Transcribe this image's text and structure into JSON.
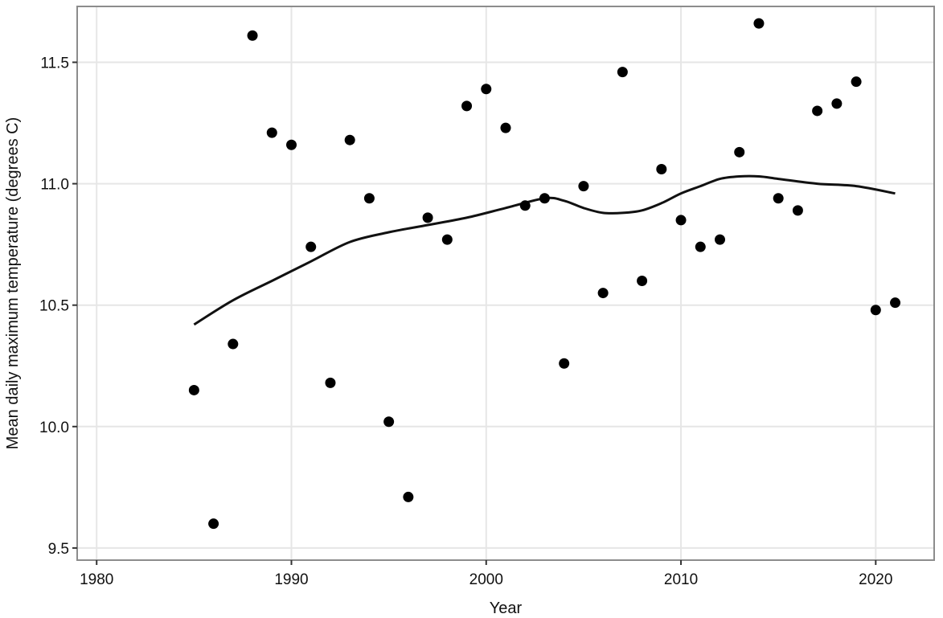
{
  "chart_data": {
    "type": "scatter",
    "title": "",
    "xlabel": "Year",
    "ylabel": "Mean daily maximum temperature (degrees C)",
    "xlim": [
      1979,
      2023
    ],
    "ylim": [
      9.45,
      11.73
    ],
    "xticks": [
      1980,
      1990,
      2000,
      2010,
      2020
    ],
    "yticks": [
      9.5,
      10.0,
      10.5,
      11.0,
      11.5
    ],
    "ytick_labels": [
      "9.5",
      "10.0",
      "10.5",
      "11.0",
      "11.5"
    ],
    "grid": true,
    "colors": {
      "points": "#000000",
      "trend": "#111111",
      "grid": "#e6e6e6",
      "frame": "#8c8c8c"
    },
    "series": [
      {
        "kind": "points",
        "x": [
          1985,
          1986,
          1987,
          1988,
          1989,
          1990,
          1991,
          1992,
          1993,
          1994,
          1995,
          1996,
          1997,
          1998,
          1999,
          2000,
          2001,
          2002,
          2003,
          2004,
          2005,
          2006,
          2007,
          2008,
          2009,
          2010,
          2011,
          2012,
          2013,
          2014,
          2015,
          2016,
          2017,
          2018,
          2019,
          2020,
          2021
        ],
        "y": [
          10.15,
          9.6,
          10.34,
          11.61,
          11.21,
          11.16,
          10.74,
          10.18,
          11.18,
          10.94,
          10.02,
          9.71,
          10.86,
          10.77,
          11.32,
          11.39,
          11.23,
          10.91,
          10.94,
          10.26,
          10.99,
          10.55,
          11.46,
          10.6,
          11.06,
          10.85,
          10.74,
          10.77,
          11.13,
          11.66,
          10.94,
          10.89,
          11.3,
          11.33,
          11.42,
          10.48,
          10.51
        ]
      },
      {
        "kind": "smoothed-trend",
        "x": [
          1985,
          1987,
          1989,
          1991,
          1993,
          1995,
          1997,
          1999,
          2001,
          2003,
          2004,
          2005,
          2006,
          2007,
          2008,
          2009,
          2010,
          2011,
          2012,
          2013,
          2014,
          2015,
          2017,
          2019,
          2021
        ],
        "y": [
          10.42,
          10.52,
          10.6,
          10.68,
          10.76,
          10.8,
          10.83,
          10.86,
          10.9,
          10.94,
          10.93,
          10.9,
          10.88,
          10.88,
          10.89,
          10.92,
          10.96,
          10.99,
          11.02,
          11.03,
          11.03,
          11.02,
          11.0,
          10.99,
          10.96
        ]
      }
    ]
  }
}
